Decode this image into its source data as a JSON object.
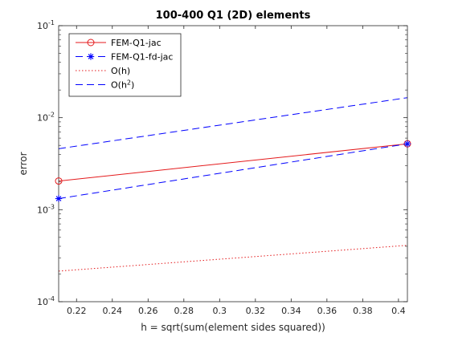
{
  "chart_data": {
    "type": "line",
    "title": "100-400 Q1 (2D) elements",
    "xlabel": "h = sqrt(sum(element sides squared))",
    "ylabel": "error",
    "yscale": "log",
    "xlim": [
      0.21,
      0.405
    ],
    "ylim": [
      0.0001,
      0.1
    ],
    "grid": false,
    "legend_position": "top-left",
    "x_ticks": [
      0.22,
      0.24,
      0.26,
      0.28,
      0.3,
      0.32,
      0.34,
      0.36,
      0.38,
      0.4
    ],
    "x_tick_labels": [
      "0.22",
      "0.24",
      "0.26",
      "0.28",
      "0.3",
      "0.32",
      "0.34",
      "0.36",
      "0.38",
      "0.4"
    ],
    "y_ticks": [
      0.0001,
      0.001,
      0.01,
      0.1
    ],
    "y_tick_labels": [
      "10-4",
      "10-3",
      "10-2",
      "10-1"
    ],
    "series": [
      {
        "name": "FEM-Q1-jac",
        "color": "#e41a1c",
        "line_style": "solid",
        "marker": "circle",
        "x": [
          0.21,
          0.405
        ],
        "y": [
          0.00205,
          0.0052
        ]
      },
      {
        "name": "FEM-Q1-fd-jac",
        "color": "#0000ff",
        "line_style": "dashed",
        "marker": "asterisk",
        "x": [
          0.21,
          0.405
        ],
        "y": [
          0.00132,
          0.0052
        ]
      },
      {
        "name": "O(h)",
        "color": "#e41a1c",
        "line_style": "dotted",
        "marker": "none",
        "x": [
          0.21,
          0.405
        ],
        "y": [
          0.000215,
          0.00041
        ]
      },
      {
        "name": "O(h2)",
        "color": "#0000ff",
        "line_style": "dashed",
        "marker": "none",
        "x": [
          0.21,
          0.405
        ],
        "y": [
          0.0046,
          0.0165
        ]
      }
    ]
  }
}
